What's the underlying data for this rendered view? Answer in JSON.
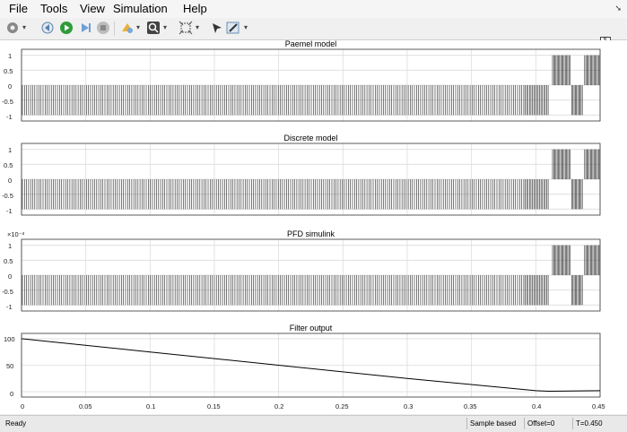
{
  "menu": [
    "File",
    "Tools",
    "View",
    "Simulation",
    "Help"
  ],
  "toolbar_icons": [
    "settings-icon",
    "step-back-icon",
    "run-icon",
    "step-forward-icon",
    "stop-icon",
    "highlight-icon",
    "zoom-icon",
    "fit-to-view-icon",
    "cursor-icon",
    "edit-icon"
  ],
  "plots": [
    {
      "title": "Paemel model",
      "yticks": [
        "1",
        "0.5",
        "0",
        "-0.5",
        "-1"
      ],
      "exponent": ""
    },
    {
      "title": "Discrete model",
      "yticks": [
        "1",
        "0.5",
        "0",
        "-0.5",
        "-1"
      ],
      "exponent": ""
    },
    {
      "title": "PFD simulink",
      "yticks": [
        "1",
        "0.5",
        "0",
        "-0.5",
        "-1"
      ],
      "exponent": "×10⁻³"
    },
    {
      "title": "Filter output",
      "yticks": [
        "100",
        "50",
        "0"
      ],
      "exponent": ""
    }
  ],
  "xticks": [
    "0",
    "0.05",
    "0.1",
    "0.15",
    "0.2",
    "0.25",
    "0.3",
    "0.35",
    "0.4",
    "0.45"
  ],
  "status": {
    "ready": "Ready",
    "sample": "Sample based",
    "offset": "Offset=0",
    "time": "T=0.450"
  },
  "chart_data": [
    {
      "type": "line",
      "title": "Paemel model",
      "xlim": [
        0,
        0.45
      ],
      "ylim": [
        -1.2,
        1.2
      ],
      "grid": true,
      "description_series": [
        {
          "x": [
            0,
            0.38,
            0.4,
            0.41,
            0.42,
            0.45
          ],
          "y": [
            -1,
            -1,
            -1,
            0,
            1,
            1
          ]
        }
      ]
    },
    {
      "type": "line",
      "title": "Discrete model",
      "xlim": [
        0,
        0.45
      ],
      "ylim": [
        -1.2,
        1.2
      ],
      "grid": true,
      "description_series": [
        {
          "x": [
            0,
            0.38,
            0.4,
            0.41,
            0.42,
            0.45
          ],
          "y": [
            -1,
            -1,
            -1,
            0,
            1,
            1
          ]
        }
      ]
    },
    {
      "type": "line",
      "title": "PFD simulink",
      "xlim": [
        0,
        0.45
      ],
      "ylim": [
        -1.2,
        1.2
      ],
      "grid": true,
      "description_series": [
        {
          "x": [
            0,
            0.38,
            0.4,
            0.41,
            0.42,
            0.45
          ],
          "y": [
            -1,
            -1,
            -1,
            0,
            1,
            1
          ]
        }
      ]
    },
    {
      "type": "line",
      "title": "Filter output",
      "xlim": [
        0,
        0.45
      ],
      "ylim": [
        -10,
        110
      ],
      "grid": true,
      "series": [
        {
          "x": [
            0,
            0.1,
            0.2,
            0.3,
            0.4,
            0.41,
            0.45
          ],
          "y": [
            100,
            75,
            50,
            25,
            2,
            1,
            2
          ]
        }
      ]
    }
  ]
}
